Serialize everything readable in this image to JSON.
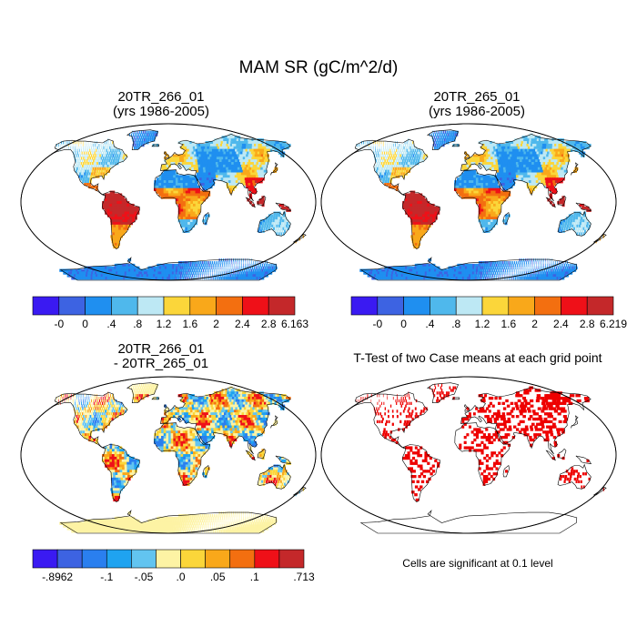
{
  "title": "MAM SR (gC/m^2/d)",
  "panels": [
    {
      "id": "p1",
      "title_lines": [
        "20TR_266_01",
        "(yrs 1986-2005)"
      ]
    },
    {
      "id": "p2",
      "title_lines": [
        "20TR_265_01",
        "(yrs 1986-2005)"
      ]
    },
    {
      "id": "p3",
      "title_lines": [
        "20TR_266_01",
        " - 20TR_265_01"
      ]
    },
    {
      "id": "p4",
      "title_lines": [
        "T-Test of two Case means at each grid point"
      ]
    }
  ],
  "colorbars": [
    {
      "id": "cb1",
      "colors": [
        "#3a1af2",
        "#3d63e2",
        "#1f8ff0",
        "#4fb8ec",
        "#bde8f4",
        "#fbd63a",
        "#f9a81a",
        "#f36f10",
        "#ef1018",
        "#c4282a"
      ],
      "labels": [
        "-0",
        "0",
        ".4",
        ".8",
        "1.2",
        "1.6",
        "2",
        "2.4",
        "2.8",
        "6.163"
      ]
    },
    {
      "id": "cb2",
      "colors": [
        "#3a1af2",
        "#3d63e2",
        "#1f8ff0",
        "#4fb8ec",
        "#bde8f4",
        "#fbd63a",
        "#f9a81a",
        "#f36f10",
        "#ef1018",
        "#c4282a"
      ],
      "labels": [
        "-0",
        "0",
        ".4",
        ".8",
        "1.2",
        "1.6",
        "2",
        "2.4",
        "2.8",
        "6.219"
      ]
    },
    {
      "id": "cb3",
      "colors": [
        "#3a1af2",
        "#3d63e2",
        "#2a7fef",
        "#1fa3f0",
        "#62c4f0",
        "#fdf3a4",
        "#fbd63a",
        "#f9a81a",
        "#f36f10",
        "#ef1018",
        "#c4282a"
      ],
      "labels": [
        "-.8962",
        "-.1",
        "-.05",
        ".0",
        ".05",
        ".1",
        ".713"
      ]
    }
  ],
  "footnote": "Cells are significant at 0.1 level",
  "colors": {
    "ocean": "#ffffff",
    "land_low": "#3d63e2",
    "land_high": "#d62a2a",
    "diff_neutral": "#fdf3a4",
    "significant": "#ee0000"
  }
}
